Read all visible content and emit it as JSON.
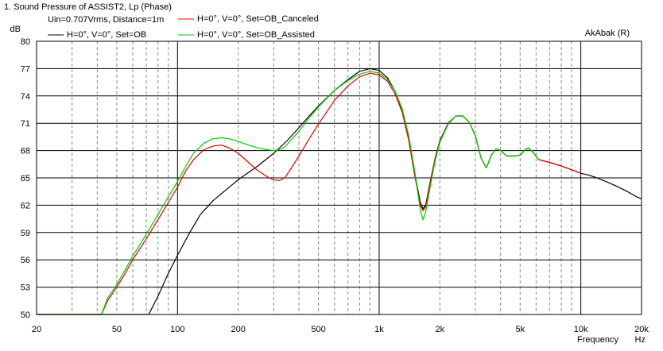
{
  "window": {
    "title": "1. Sound Pressure of ASSIST2, Lp (Phase)",
    "brand": "AkAbak (R)",
    "info": "Uin=0.707Vrms, Distance=1m"
  },
  "chart_data": {
    "type": "line",
    "title": "1. Sound Pressure of ASSIST2, Lp (Phase)",
    "xlabel": "Frequency",
    "xunit": "Hz",
    "ylabel": "dB",
    "xscale": "log",
    "xlim": [
      20,
      20000
    ],
    "ylim": [
      50,
      80
    ],
    "grid": true,
    "legend_position": "top-left",
    "x_tick_labels": [
      {
        "value": 20,
        "label": "20"
      },
      {
        "value": 50,
        "label": "50"
      },
      {
        "value": 100,
        "label": "100"
      },
      {
        "value": 200,
        "label": "200"
      },
      {
        "value": 500,
        "label": "500"
      },
      {
        "value": 1000,
        "label": "1k"
      },
      {
        "value": 2000,
        "label": "2k"
      },
      {
        "value": 5000,
        "label": "5k"
      },
      {
        "value": 10000,
        "label": "10k"
      },
      {
        "value": 20000,
        "label": "20k"
      }
    ],
    "y_tick_labels": [
      {
        "value": 80,
        "label": "80"
      },
      {
        "value": 77,
        "label": "77"
      },
      {
        "value": 74,
        "label": "74"
      },
      {
        "value": 71,
        "label": "71"
      },
      {
        "value": 68,
        "label": "68"
      },
      {
        "value": 65,
        "label": "65"
      },
      {
        "value": 62,
        "label": "62"
      },
      {
        "value": 59,
        "label": "59"
      },
      {
        "value": 56,
        "label": "56"
      },
      {
        "value": 53,
        "label": "53"
      },
      {
        "value": 50,
        "label": "50"
      }
    ],
    "series": [
      {
        "name": "H=0°, V=0°, Set=OB",
        "color": "#000000",
        "points": [
          [
            20,
            50
          ],
          [
            72,
            50
          ],
          [
            80,
            52
          ],
          [
            90,
            54.5
          ],
          [
            100,
            56.5
          ],
          [
            115,
            59
          ],
          [
            130,
            61
          ],
          [
            150,
            62.5
          ],
          [
            170,
            63.5
          ],
          [
            200,
            64.8
          ],
          [
            250,
            66.3
          ],
          [
            300,
            67.7
          ],
          [
            350,
            69.1
          ],
          [
            400,
            70.5
          ],
          [
            450,
            71.8
          ],
          [
            500,
            72.9
          ],
          [
            600,
            74.6
          ],
          [
            700,
            75.8
          ],
          [
            800,
            76.7
          ],
          [
            900,
            77.0
          ],
          [
            1000,
            76.8
          ],
          [
            1100,
            76
          ],
          [
            1200,
            74.5
          ],
          [
            1300,
            72.5
          ],
          [
            1400,
            69.5
          ],
          [
            1500,
            65.5
          ],
          [
            1600,
            62.3
          ],
          [
            1650,
            61.6
          ],
          [
            1700,
            62
          ],
          [
            1800,
            64.8
          ],
          [
            1900,
            67.3
          ],
          [
            2000,
            69.1
          ],
          [
            2200,
            71
          ],
          [
            2400,
            71.8
          ],
          [
            2600,
            71.8
          ],
          [
            2800,
            71.1
          ],
          [
            3000,
            69.6
          ],
          [
            3200,
            67.2
          ],
          [
            3400,
            66.1
          ],
          [
            3600,
            67.5
          ],
          [
            3800,
            68.2
          ],
          [
            4000,
            68.0
          ],
          [
            4300,
            67.4
          ],
          [
            4700,
            67.4
          ],
          [
            5000,
            67.5
          ],
          [
            5300,
            68.1
          ],
          [
            5500,
            68.3
          ],
          [
            5800,
            67.8
          ],
          [
            6200,
            67.0
          ],
          [
            7000,
            66.7
          ],
          [
            8000,
            66.3
          ],
          [
            9000,
            65.9
          ],
          [
            10000,
            65.5
          ],
          [
            11000,
            65.3
          ],
          [
            12000,
            65.0
          ],
          [
            13000,
            64.7
          ],
          [
            14000,
            64.4
          ],
          [
            15000,
            64.1
          ],
          [
            16000,
            63.8
          ],
          [
            17000,
            63.5
          ],
          [
            18000,
            63.2
          ],
          [
            19000,
            62.9
          ],
          [
            20000,
            62.7
          ]
        ]
      },
      {
        "name": "H=0°, V=0°, Set=OB_Canceled",
        "color": "#e00000",
        "points": [
          [
            20,
            50
          ],
          [
            42,
            50
          ],
          [
            45,
            51.5
          ],
          [
            50,
            53
          ],
          [
            55,
            54.5
          ],
          [
            60,
            56
          ],
          [
            70,
            58.3
          ],
          [
            80,
            60.4
          ],
          [
            90,
            62.3
          ],
          [
            100,
            64
          ],
          [
            110,
            65.8
          ],
          [
            120,
            67
          ],
          [
            135,
            68.1
          ],
          [
            150,
            68.5
          ],
          [
            165,
            68.6
          ],
          [
            180,
            68.3
          ],
          [
            200,
            67.7
          ],
          [
            225,
            66.7
          ],
          [
            250,
            65.8
          ],
          [
            280,
            65.1
          ],
          [
            300,
            64.8
          ],
          [
            320,
            64.7
          ],
          [
            340,
            65
          ],
          [
            360,
            65.8
          ],
          [
            400,
            67.4
          ],
          [
            450,
            69.3
          ],
          [
            500,
            70.9
          ],
          [
            600,
            73.5
          ],
          [
            700,
            75.1
          ],
          [
            800,
            76.1
          ],
          [
            900,
            76.5
          ],
          [
            1000,
            76.3
          ],
          [
            1100,
            75.6
          ],
          [
            1200,
            74.2
          ],
          [
            1300,
            72.2
          ],
          [
            1400,
            69.2
          ],
          [
            1500,
            65.3
          ],
          [
            1600,
            62.0
          ],
          [
            1650,
            61.4
          ],
          [
            1700,
            61.8
          ],
          [
            1800,
            64.7
          ],
          [
            1900,
            67.2
          ],
          [
            2000,
            69.0
          ],
          [
            2200,
            70.9
          ],
          [
            2400,
            71.8
          ],
          [
            2600,
            71.8
          ],
          [
            2800,
            71.1
          ],
          [
            3000,
            69.6
          ],
          [
            3200,
            67.2
          ],
          [
            3400,
            66.1
          ],
          [
            3600,
            67.5
          ],
          [
            3800,
            68.2
          ],
          [
            4000,
            68.0
          ],
          [
            4300,
            67.4
          ],
          [
            4700,
            67.4
          ],
          [
            5000,
            67.5
          ],
          [
            5300,
            68.1
          ],
          [
            5500,
            68.3
          ],
          [
            5800,
            67.8
          ],
          [
            6200,
            67.0
          ],
          [
            7000,
            66.7
          ],
          [
            8000,
            66.3
          ],
          [
            9000,
            65.9
          ],
          [
            10000,
            65.5
          ]
        ]
      },
      {
        "name": "H=0°, V=0°, Set=OB_Assisted",
        "color": "#00cc00",
        "points": [
          [
            20,
            50
          ],
          [
            42,
            50
          ],
          [
            45,
            51.8
          ],
          [
            50,
            53.3
          ],
          [
            55,
            54.9
          ],
          [
            60,
            56.4
          ],
          [
            70,
            58.8
          ],
          [
            80,
            61
          ],
          [
            90,
            62.9
          ],
          [
            100,
            64.6
          ],
          [
            110,
            66.3
          ],
          [
            120,
            67.7
          ],
          [
            135,
            68.8
          ],
          [
            150,
            69.3
          ],
          [
            165,
            69.4
          ],
          [
            180,
            69.3
          ],
          [
            200,
            69.0
          ],
          [
            225,
            68.6
          ],
          [
            250,
            68.3
          ],
          [
            280,
            68.1
          ],
          [
            300,
            68.0
          ],
          [
            320,
            68.1
          ],
          [
            340,
            68.4
          ],
          [
            360,
            69.0
          ],
          [
            400,
            70.1
          ],
          [
            450,
            71.6
          ],
          [
            500,
            72.8
          ],
          [
            600,
            74.6
          ],
          [
            700,
            75.7
          ],
          [
            800,
            76.4
          ],
          [
            900,
            76.7
          ],
          [
            1000,
            76.5
          ],
          [
            1100,
            75.8
          ],
          [
            1200,
            74.5
          ],
          [
            1300,
            72.6
          ],
          [
            1400,
            69.7
          ],
          [
            1500,
            65.8
          ],
          [
            1600,
            61.4
          ],
          [
            1650,
            60.4
          ],
          [
            1700,
            61.2
          ],
          [
            1800,
            64.3
          ],
          [
            1900,
            67.0
          ],
          [
            2000,
            68.9
          ],
          [
            2200,
            70.9
          ],
          [
            2400,
            71.8
          ],
          [
            2600,
            71.8
          ],
          [
            2800,
            71.1
          ],
          [
            3000,
            69.6
          ],
          [
            3200,
            67.2
          ],
          [
            3400,
            66.1
          ],
          [
            3600,
            67.5
          ],
          [
            3800,
            68.2
          ],
          [
            4000,
            68.0
          ],
          [
            4300,
            67.4
          ],
          [
            4700,
            67.4
          ],
          [
            5000,
            67.5
          ],
          [
            5300,
            68.1
          ],
          [
            5500,
            68.3
          ],
          [
            5800,
            67.8
          ],
          [
            6200,
            67.0
          ]
        ]
      }
    ]
  }
}
